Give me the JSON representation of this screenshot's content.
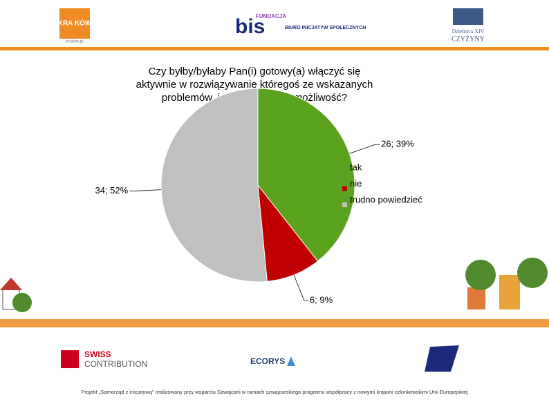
{
  "chart_data": {
    "type": "pie",
    "title": "Czy byłby/byłaby Pan(i) gotowy(a) włączyć się aktywnie w rozwiązywanie któregoś ze wskazanych problemów, jeśli byłaby taka możliwość?",
    "categories": [
      "tak",
      "nie",
      "trudno powiedzieć"
    ],
    "values": [
      26,
      6,
      34
    ],
    "value_labels": [
      "26; 39%",
      "6; 9%",
      "34; 52%"
    ],
    "colors": [
      "#5ba31e",
      "#c00000",
      "#c0c0c0"
    ],
    "legend": "right"
  },
  "header": {
    "logo_left": "KRA KÓW",
    "logo_left_url": "krakow.pl",
    "logo_center_top": "FUNDACJA",
    "logo_center": "BIURO INICJATYW SPOŁECZNYCH",
    "logo_right_top": "Dzielnica XIV",
    "logo_right": "CZYŻYNY"
  },
  "footer": {
    "logo_swiss_1": "SWISS",
    "logo_swiss_2": "CONTRIBUTION",
    "logo_ecorys": "ECORYS",
    "note": "Projekt „Samorząd z inicjatywą” realizowany przy wsparciu Szwajcarii w ramach szwajcarskiego programu współpracy z nowymi krajami członkowskimi Unii Europejskiej"
  }
}
